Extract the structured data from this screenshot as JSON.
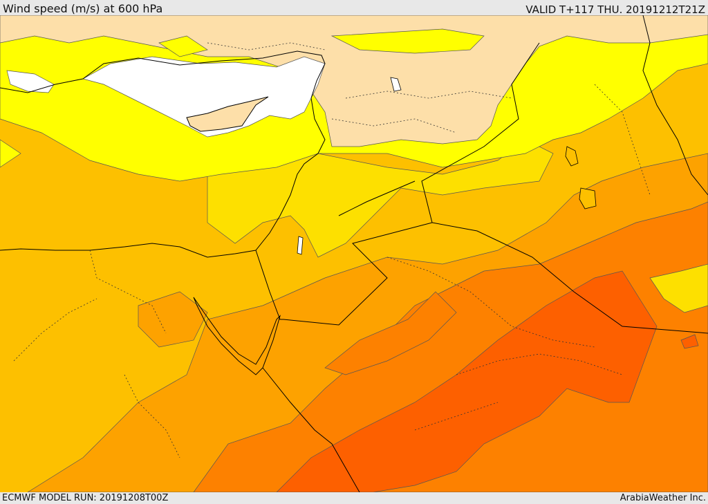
{
  "header": {
    "title": "Wind speed (m/s) at 600 hPa",
    "valid": "VALID T+117 THU. 20191212T21Z"
  },
  "footer": {
    "model_run": "ECMWF MODEL RUN: 20191208T00Z",
    "credit": "ArabiaWeather Inc."
  },
  "palette": {
    "sea_white": "#ffffff",
    "band_lightest": "#fddfa9",
    "band_yellow": "#ffff00",
    "band_gold": "#fde000",
    "band_amber": "#fdc000",
    "band_orange_light": "#fda200",
    "band_orange": "#fd8100",
    "band_deep": "#fd6000",
    "border": "#000000",
    "contour": "#555555"
  }
}
